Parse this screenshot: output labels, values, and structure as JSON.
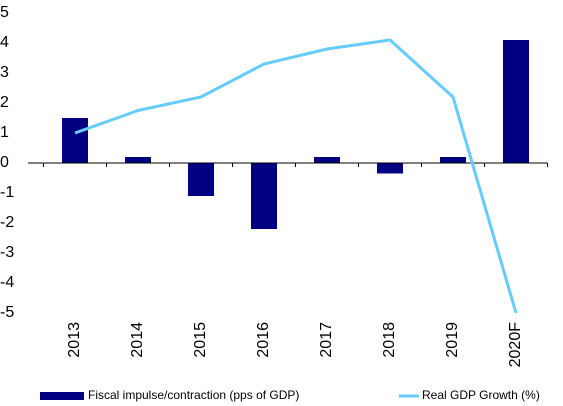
{
  "chart_data": {
    "type": "bar_line",
    "categories": [
      "2013",
      "2014",
      "2015",
      "2016",
      "2017",
      "2018",
      "2019",
      "2020F"
    ],
    "series": [
      {
        "name": "Fiscal impulse/contraction (pps of GDP)",
        "type": "bar",
        "color": "#000080",
        "values": [
          1.5,
          0.2,
          -1.1,
          -2.2,
          0.2,
          -0.35,
          0.2,
          4.1
        ]
      },
      {
        "name": "Real GDP Growth (%)",
        "type": "line",
        "color": "#66ccff",
        "values": [
          1.0,
          1.75,
          2.2,
          3.3,
          3.8,
          4.1,
          2.2,
          -5.0
        ]
      }
    ],
    "ylim": [
      -5,
      5
    ],
    "yticks": [
      -5,
      -4,
      -3,
      -2,
      -1,
      0,
      1,
      2,
      3,
      4,
      5
    ],
    "grid": false
  }
}
